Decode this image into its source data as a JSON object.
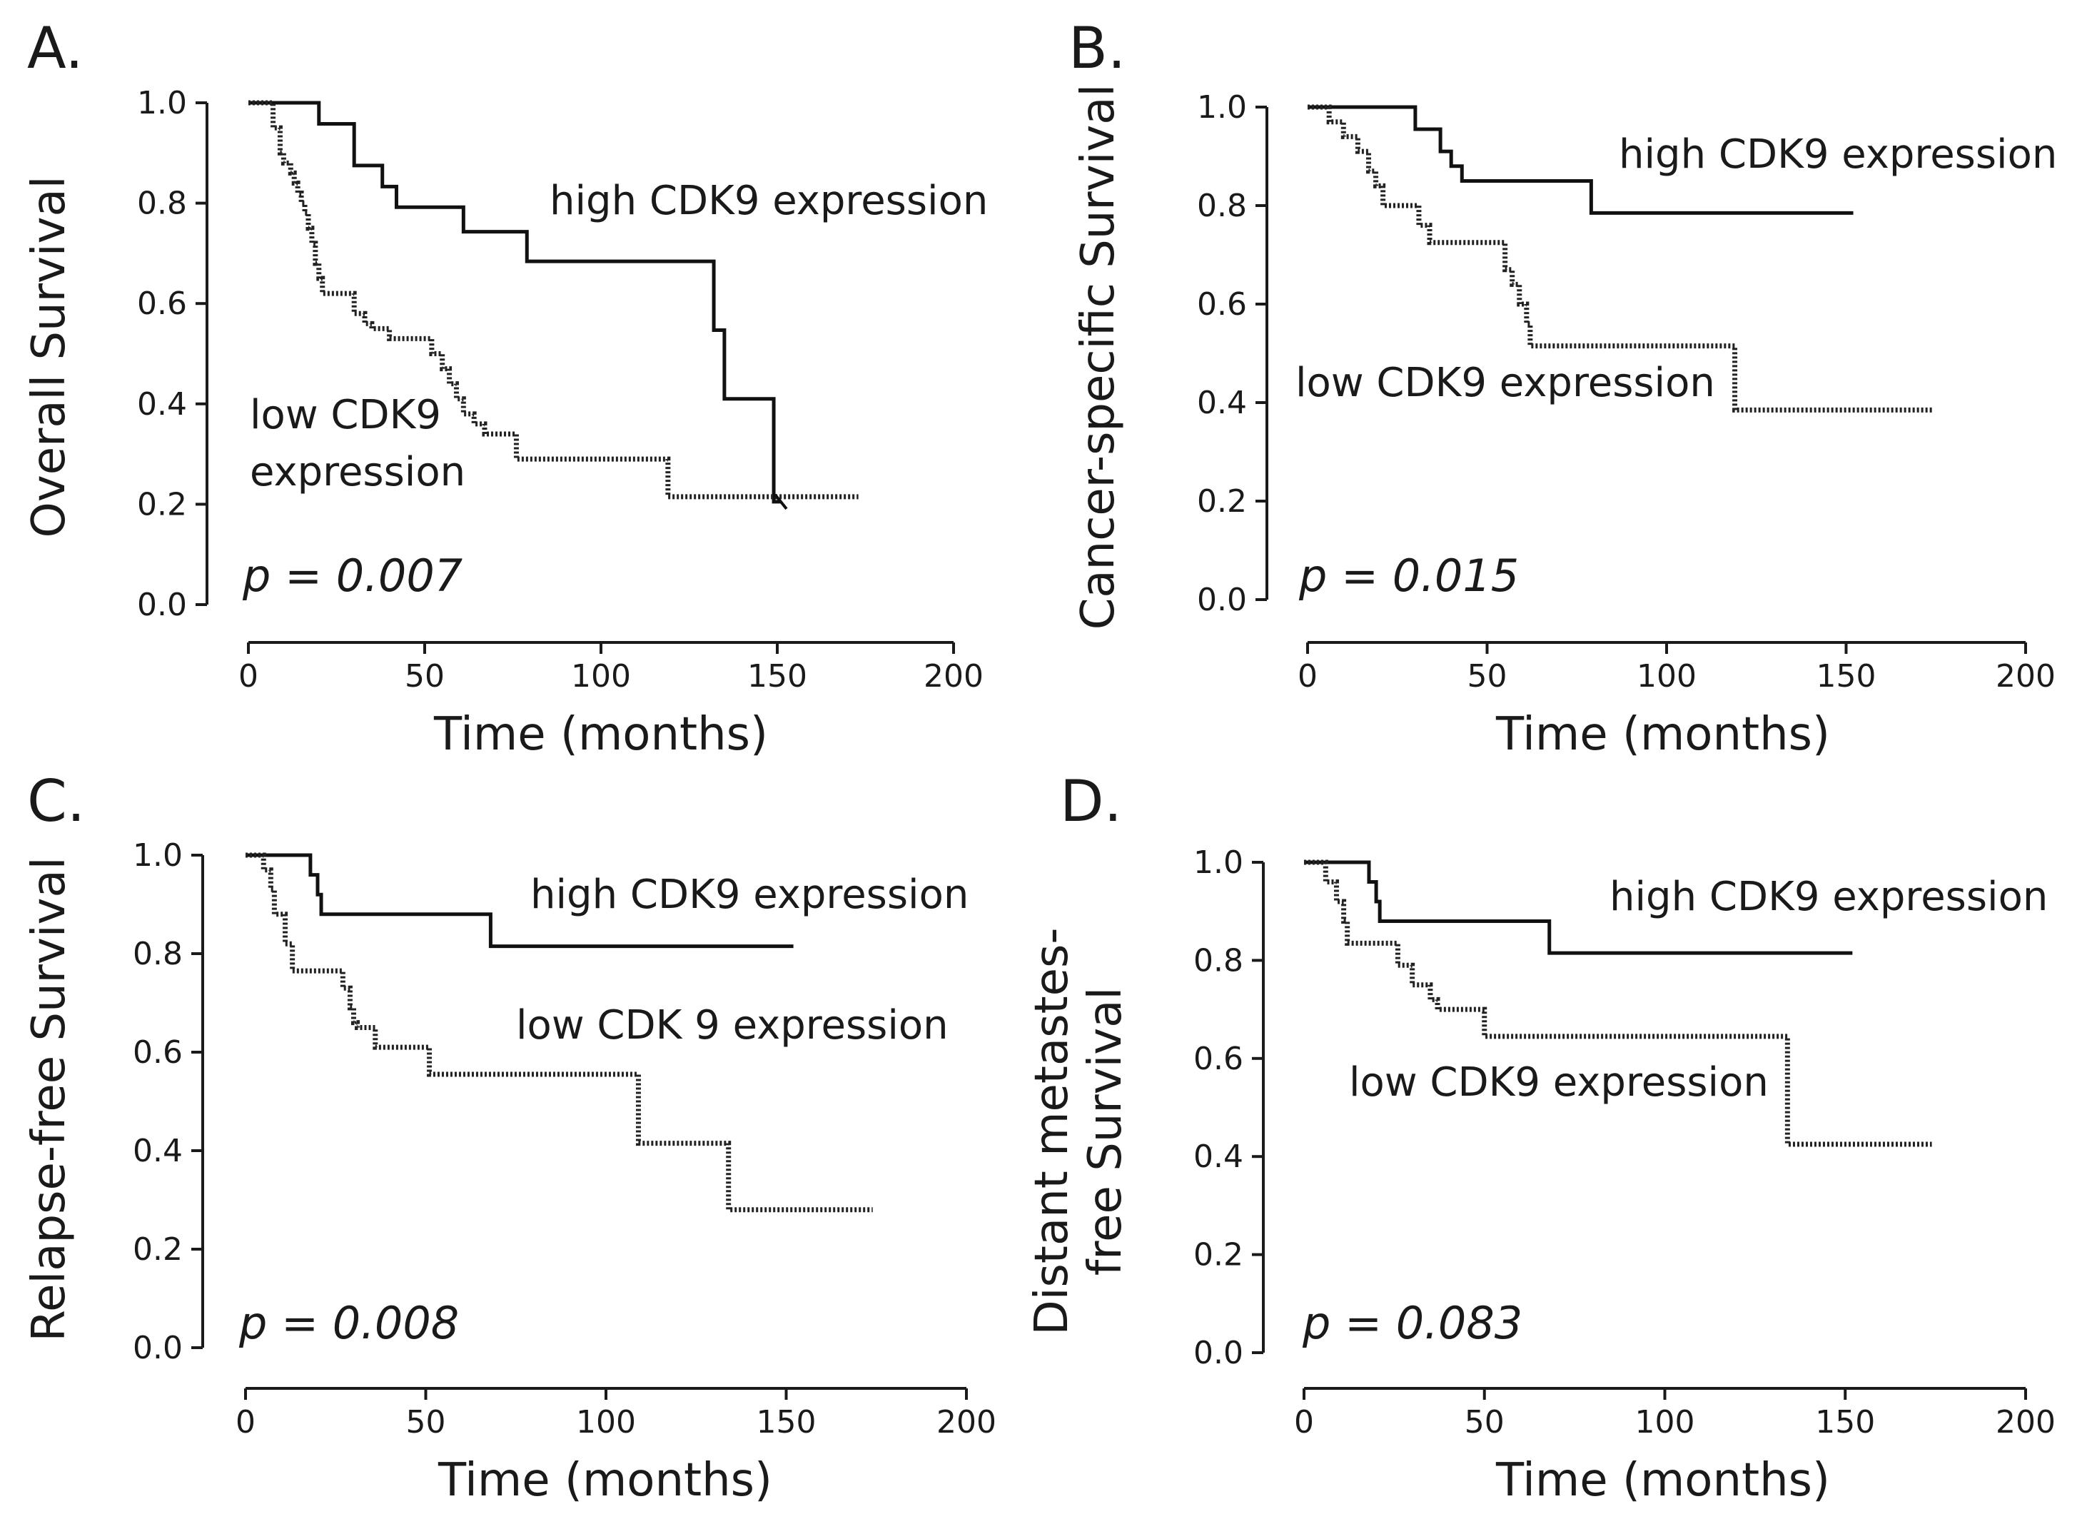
{
  "chart_data": [
    {
      "type": "line",
      "panel_label": "A.",
      "ylabel": "Overall Survival",
      "xlabel": "Time (months)",
      "xlim": [
        0,
        200
      ],
      "ylim": [
        0,
        1.0
      ],
      "xticks": [
        "0",
        "50",
        "100",
        "150",
        "200"
      ],
      "yticks": [
        "0.0",
        "0.2",
        "0.4",
        "0.6",
        "0.8",
        "1.0"
      ],
      "p_value": "p = 0.007",
      "series": [
        {
          "name": "high CDK9 expression",
          "label_lines": [
            "high CDK9 expression"
          ],
          "style": "solid",
          "x": [
            0,
            20,
            30,
            38,
            42,
            61,
            79,
            132,
            135,
            149,
            151
          ],
          "y": [
            1.0,
            0.958,
            0.875,
            0.833,
            0.792,
            0.743,
            0.684,
            0.547,
            0.41,
            0.205,
            0.205
          ]
        },
        {
          "name": "low CDK9 expression",
          "label_lines": [
            "low CDK9",
            "expression"
          ],
          "style": "dotted",
          "x": [
            0,
            7,
            9,
            10,
            12,
            13,
            14,
            15,
            16,
            17,
            18,
            19,
            20,
            21,
            30,
            33,
            35,
            40,
            52,
            55,
            57,
            59,
            61,
            64,
            67,
            76,
            119,
            173
          ],
          "y": [
            1.0,
            0.95,
            0.9,
            0.88,
            0.86,
            0.84,
            0.82,
            0.8,
            0.78,
            0.75,
            0.72,
            0.68,
            0.65,
            0.62,
            0.58,
            0.56,
            0.55,
            0.53,
            0.5,
            0.47,
            0.44,
            0.41,
            0.38,
            0.36,
            0.34,
            0.29,
            0.215,
            0.215
          ]
        }
      ]
    },
    {
      "type": "line",
      "panel_label": "B.",
      "ylabel": "Cancer-specific Survival",
      "xlabel": "Time (months)",
      "xlim": [
        0,
        200
      ],
      "ylim": [
        0,
        1.0
      ],
      "xticks": [
        "0",
        "50",
        "100",
        "150",
        "200"
      ],
      "yticks": [
        "0.0",
        "0.2",
        "0.4",
        "0.6",
        "0.8",
        "1.0"
      ],
      "p_value": "p = 0.015",
      "series": [
        {
          "name": "high CDK9 expression",
          "label_lines": [
            "high CDK9 expression"
          ],
          "style": "solid",
          "x": [
            0,
            30,
            37,
            40,
            43,
            79,
            152
          ],
          "y": [
            1.0,
            0.955,
            0.91,
            0.88,
            0.85,
            0.785,
            0.785
          ]
        },
        {
          "name": "low CDK9 expression",
          "label_lines": [
            "low CDK9 expression"
          ],
          "style": "dotted",
          "x": [
            0,
            6,
            10,
            14,
            17,
            19,
            21,
            31,
            34,
            55,
            57,
            59,
            61,
            62,
            119,
            174
          ],
          "y": [
            1.0,
            0.97,
            0.94,
            0.91,
            0.87,
            0.84,
            0.8,
            0.76,
            0.725,
            0.67,
            0.64,
            0.6,
            0.56,
            0.515,
            0.385,
            0.385
          ]
        }
      ]
    },
    {
      "type": "line",
      "panel_label": "C.",
      "ylabel": "Relapse-free Survival",
      "xlabel": "Time (months)",
      "xlim": [
        0,
        200
      ],
      "ylim": [
        0,
        1.0
      ],
      "xticks": [
        "0",
        "50",
        "100",
        "150",
        "200"
      ],
      "yticks": [
        "0.0",
        "0.2",
        "0.4",
        "0.6",
        "0.8",
        "1.0"
      ],
      "p_value": "p = 0.008",
      "series": [
        {
          "name": "high CDK9 expression",
          "label_lines": [
            "high CDK9 expression"
          ],
          "style": "solid",
          "x": [
            0,
            18,
            20,
            21,
            68,
            152
          ],
          "y": [
            1.0,
            0.96,
            0.92,
            0.88,
            0.815,
            0.815
          ]
        },
        {
          "name": "low CDK 9 expression",
          "label_lines": [
            "low CDK 9 expression"
          ],
          "style": "dotted",
          "x": [
            0,
            5,
            7,
            8,
            11,
            13,
            27,
            29,
            30,
            31,
            36,
            51,
            109,
            134,
            174
          ],
          "y": [
            1.0,
            0.97,
            0.93,
            0.88,
            0.82,
            0.765,
            0.73,
            0.69,
            0.66,
            0.65,
            0.61,
            0.555,
            0.415,
            0.28,
            0.28
          ]
        }
      ]
    },
    {
      "type": "line",
      "panel_label": "D.",
      "ylabel_lines": [
        "Distant metastes-",
        "free Survival"
      ],
      "ylabel": "Distant metastes- free Survival",
      "xlabel": "Time (months)",
      "xlim": [
        0,
        200
      ],
      "ylim": [
        0,
        1.0
      ],
      "xticks": [
        "0",
        "50",
        "100",
        "150",
        "200"
      ],
      "yticks": [
        "0.0",
        "0.2",
        "0.4",
        "0.6",
        "0.8",
        "1.0"
      ],
      "p_value": "p = 0.083",
      "series": [
        {
          "name": "high CDK9 expression",
          "label_lines": [
            "high CDK9 expression"
          ],
          "style": "solid",
          "x": [
            0,
            18,
            20,
            21,
            68,
            152
          ],
          "y": [
            1.0,
            0.96,
            0.92,
            0.88,
            0.815,
            0.815
          ]
        },
        {
          "name": "low CDK9 expression",
          "label_lines": [
            "low CDK9 expression"
          ],
          "style": "dotted",
          "x": [
            0,
            6,
            9,
            11,
            12,
            26,
            30,
            35,
            37,
            50,
            134,
            174
          ],
          "y": [
            1.0,
            0.96,
            0.92,
            0.88,
            0.835,
            0.79,
            0.75,
            0.72,
            0.7,
            0.645,
            0.425,
            0.425
          ]
        }
      ]
    }
  ]
}
